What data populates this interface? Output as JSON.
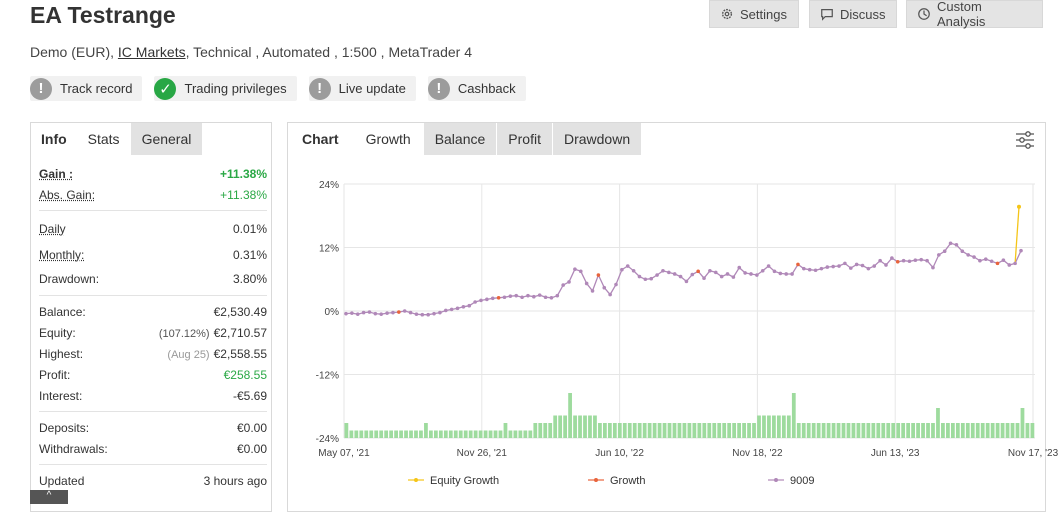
{
  "header": {
    "title": "EA Testrange",
    "account_type": "Demo (EUR),",
    "broker": "IC Markets",
    "details": ", Technical , Automated , 1:500 , MetaTrader 4"
  },
  "top_buttons": {
    "settings": "Settings",
    "discuss": "Discuss",
    "custom_analysis": "Custom Analysis"
  },
  "badges": [
    {
      "label": "Track record",
      "state": "warn"
    },
    {
      "label": "Trading privileges",
      "state": "ok"
    },
    {
      "label": "Live update",
      "state": "warn"
    },
    {
      "label": "Cashback",
      "state": "warn"
    }
  ],
  "left_tabs": [
    "Info",
    "Stats",
    "General"
  ],
  "stats": {
    "gain": {
      "label": "Gain :",
      "value": "+11.38%"
    },
    "abs_gain": {
      "label": "Abs. Gain:",
      "value": "+11.38%"
    },
    "daily": {
      "label": "Daily",
      "value": "0.01%"
    },
    "monthly": {
      "label": "Monthly:",
      "value": "0.31%"
    },
    "drawdown": {
      "label": "Drawdown:",
      "value": "3.80%"
    },
    "balance": {
      "label": "Balance:",
      "value": "€2,530.49"
    },
    "equity": {
      "label": "Equity:",
      "note": "(107.12%)",
      "value": "€2,710.57"
    },
    "highest": {
      "label": "Highest:",
      "note": "(Aug 25)",
      "value": "€2,558.55"
    },
    "profit": {
      "label": "Profit:",
      "value": "€258.55"
    },
    "interest": {
      "label": "Interest:",
      "value": "-€5.69"
    },
    "deposits": {
      "label": "Deposits:",
      "value": "€0.00"
    },
    "withdrawals": {
      "label": "Withdrawals:",
      "value": "€0.00"
    },
    "updated": {
      "label": "Updated",
      "value": "3 hours ago"
    }
  },
  "chart_tabs": [
    "Chart",
    "Growth",
    "Balance",
    "Profit",
    "Drawdown"
  ],
  "colors": {
    "equity": "#f5c518",
    "growth": "#e8643c",
    "series_9009": "#b088b8",
    "bars": "#9edb9e"
  },
  "chart_data": {
    "type": "line",
    "y_ticks": [
      "24%",
      "12%",
      "0%",
      "-12%",
      "-24%"
    ],
    "x_ticks": [
      "May 07, '21",
      "Nov 26, '21",
      "Jun 10, '22",
      "Nov 18, '22",
      "Jun 13, '23",
      "Nov 17, '23"
    ],
    "ylim": [
      -24,
      24
    ],
    "series": [
      {
        "name": "Equity Growth"
      },
      {
        "name": "Growth"
      },
      {
        "name": "9009"
      }
    ],
    "growth_values": [
      -0.5,
      -0.4,
      -0.6,
      -0.3,
      -0.2,
      -0.5,
      -0.6,
      -0.4,
      -0.3,
      -0.2,
      0,
      -0.3,
      -0.6,
      -0.7,
      -0.7,
      -0.5,
      -0.3,
      0.1,
      0.3,
      0.5,
      0.8,
      1.0,
      1.7,
      2.0,
      2.2,
      2.4,
      2.5,
      2.6,
      2.8,
      2.9,
      2.6,
      2.9,
      2.7,
      3.0,
      2.6,
      2.5,
      2.9,
      4.9,
      5.5,
      7.9,
      7.5,
      5.2,
      3.8,
      6.8,
      4.4,
      3.1,
      5.0,
      7.8,
      8.5,
      7.6,
      6.5,
      6.0,
      6.1,
      6.8,
      7.6,
      7.3,
      7.0,
      6.5,
      5.6,
      6.9,
      7.5,
      6.2,
      7.6,
      7.3,
      6.5,
      7.0,
      6.4,
      8.2,
      7.2,
      7.0,
      6.8,
      7.6,
      8.5,
      7.5,
      7.1,
      7.0,
      7.0,
      8.8,
      8.0,
      7.8,
      7.7,
      8.0,
      8.3,
      8.4,
      8.5,
      9.0,
      8.1,
      8.8,
      8.6,
      8.0,
      8.5,
      9.5,
      8.7,
      10.0,
      9.3,
      9.5,
      9.4,
      9.6,
      9.7,
      9.5,
      8.2,
      10.6,
      11.3,
      12.8,
      12.5,
      11.3,
      10.6,
      10.2,
      9.5,
      9.8,
      9.4,
      9.0,
      9.6,
      8.7,
      9.0,
      11.4
    ],
    "equity_end": 19.7,
    "bar_values": [
      3,
      1.5,
      1.5,
      1.5,
      1.5,
      1.5,
      1.5,
      1.5,
      1.5,
      1.5,
      1.5,
      1.5,
      1.5,
      1.5,
      1.5,
      1.5,
      3,
      1.5,
      1.5,
      1.5,
      1.5,
      1.5,
      1.5,
      1.5,
      1.5,
      1.5,
      1.5,
      1.5,
      1.5,
      1.5,
      1.5,
      1.5,
      3,
      1.5,
      1.5,
      1.5,
      1.5,
      1.5,
      3,
      3,
      3,
      3,
      4.5,
      4.5,
      4.5,
      9,
      4.5,
      4.5,
      4.5,
      4.5,
      4.5,
      3,
      3,
      3,
      3,
      3,
      3,
      3,
      3,
      3,
      3,
      3,
      3,
      3,
      3,
      3,
      3,
      3,
      3,
      3,
      3,
      3,
      3,
      3,
      3,
      3,
      3,
      3,
      3,
      3,
      3,
      3,
      3,
      4.5,
      4.5,
      4.5,
      4.5,
      4.5,
      4.5,
      4.5,
      9,
      3,
      3,
      3,
      3,
      3,
      3,
      3,
      3,
      3,
      3,
      3,
      3,
      3,
      3,
      3,
      3,
      3,
      3,
      3,
      3,
      3,
      3,
      3,
      3,
      3,
      3,
      3,
      3,
      6,
      3,
      3,
      3,
      3,
      3,
      3,
      3,
      3,
      3,
      3,
      3,
      3,
      3,
      3,
      3,
      3,
      6,
      3,
      3
    ],
    "legend_position": "bottom"
  }
}
